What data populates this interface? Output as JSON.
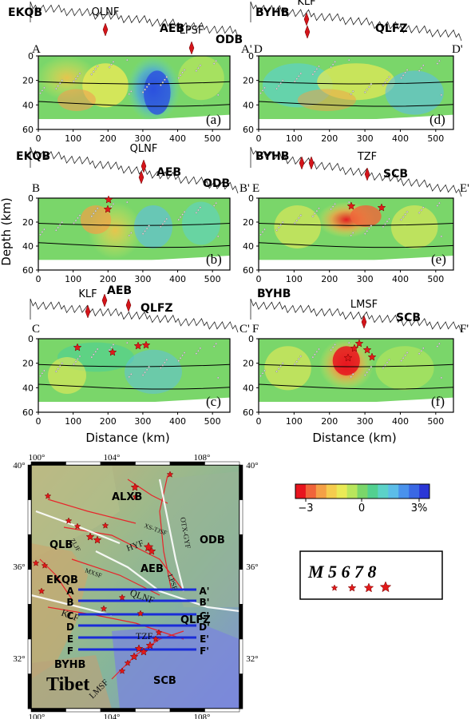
{
  "figure": {
    "ylabel": "Depth (km)",
    "xlabel": "Distance (km)",
    "depth_ticks": [
      "0",
      "20",
      "40",
      "60"
    ],
    "distance_ticks": [
      "0",
      "100",
      "200",
      "300",
      "400",
      "500"
    ],
    "panels": [
      {
        "id": "a",
        "label": "(a)",
        "start": "A",
        "end": "A'",
        "blocks": [
          "EKQB",
          "AEB",
          "ODB"
        ],
        "faults": [
          "QLNF",
          "LPSF"
        ]
      },
      {
        "id": "d",
        "label": "(d)",
        "start": "D",
        "end": "D'",
        "blocks": [
          "BYHB",
          "QLFZ"
        ],
        "faults": [
          "KLF"
        ]
      },
      {
        "id": "b",
        "label": "(b)",
        "start": "B",
        "end": "B'",
        "blocks": [
          "EKQB",
          "AEB",
          "ODB"
        ],
        "faults": [
          "QLNF"
        ]
      },
      {
        "id": "e",
        "label": "(e)",
        "start": "E",
        "end": "E'",
        "blocks": [
          "BYHB",
          "SCB"
        ],
        "faults": [
          "TZF"
        ]
      },
      {
        "id": "c",
        "label": "(c)",
        "start": "C",
        "end": "C'",
        "blocks": [
          "AEB",
          "QLFZ"
        ],
        "faults": [
          "KLF"
        ]
      },
      {
        "id": "f",
        "label": "(f)",
        "start": "F",
        "end": "F'",
        "blocks": [
          "BYHB",
          "SCB"
        ],
        "faults": [
          "LMSF"
        ]
      }
    ]
  },
  "map": {
    "lon_ticks": [
      "100°",
      "104°",
      "108°"
    ],
    "lat_ticks": [
      "40°",
      "36°",
      "32°"
    ],
    "regions": [
      "ALXB",
      "QLB",
      "AEB",
      "ODB",
      "EKQB",
      "QLFZ",
      "BYHB",
      "SCB",
      "Tibet"
    ],
    "faults": [
      "HYF",
      "LPSF",
      "QLNF",
      "KLF",
      "TZF",
      "LMSF",
      "XS-TJSF",
      "OTX-GYF",
      "ZLJF",
      "MXSF"
    ],
    "profiles": [
      {
        "start": "A",
        "end": "A'"
      },
      {
        "start": "B",
        "end": "B'"
      },
      {
        "start": "C",
        "end": "C'"
      },
      {
        "start": "D",
        "end": "D'"
      },
      {
        "start": "E",
        "end": "E'"
      },
      {
        "start": "F",
        "end": "F'"
      }
    ]
  },
  "colorbar": {
    "labels": [
      "−3",
      "0",
      "3%"
    ],
    "colors": [
      "#e8141e",
      "#f0643a",
      "#f4a046",
      "#f5cc4e",
      "#eaea56",
      "#b9e65c",
      "#7ad66a",
      "#52d090",
      "#5cd2c8",
      "#5cbde8",
      "#4a92ec",
      "#3a68e4",
      "#2a36d6"
    ]
  },
  "magnitude_legend": {
    "title": "M 5 6 7 8"
  }
}
